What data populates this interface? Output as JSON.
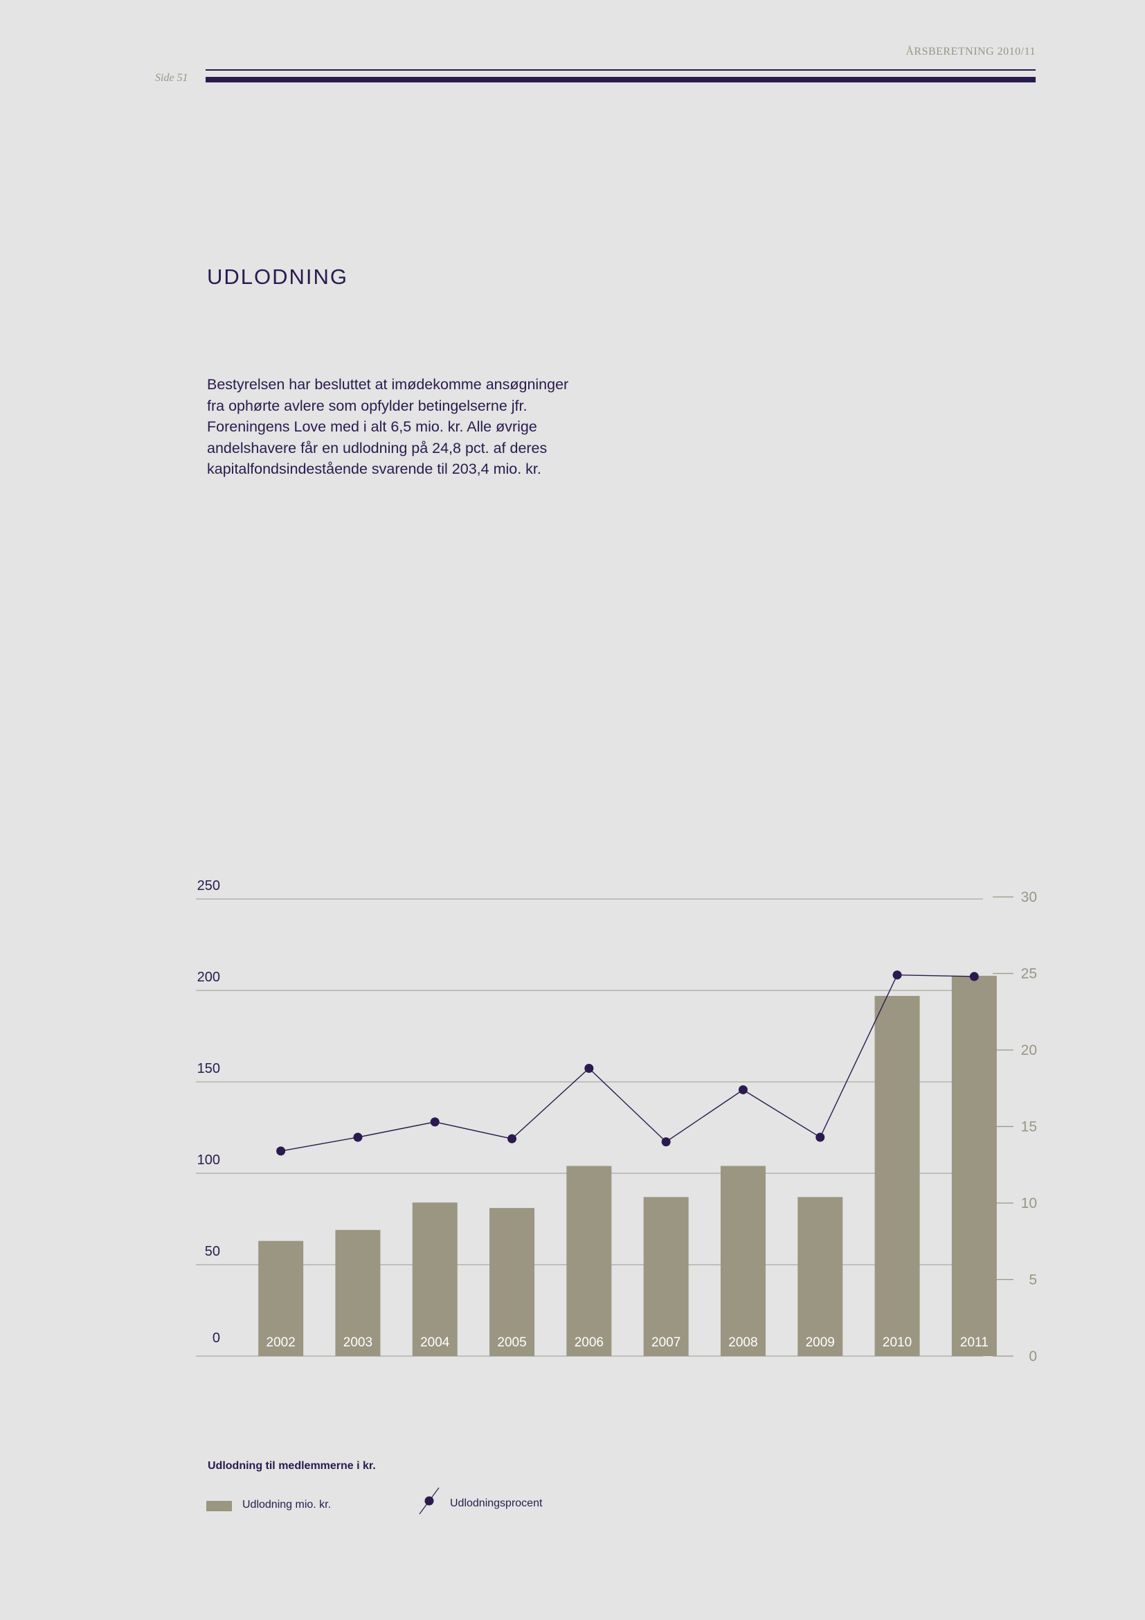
{
  "header": {
    "report_title": "ÅRSBERETNING 2010/11",
    "page_label": "Side 51"
  },
  "section": {
    "title": "UDLODNING",
    "paragraph_lines": [
      "Bestyrelsen har besluttet at imødekomme ansøgninger",
      "fra ophørte avlere som opfylder betingelserne jfr.",
      "Foreningens Love med i alt 6,5 mio. kr. Alle øvrige",
      "andelshavere får en udlodning på 24,8 pct. af deres",
      "kapitalfondsindestående svarende til 203,4 mio. kr."
    ]
  },
  "chart_data": {
    "type": "bar",
    "title": "Udlodning til medlemmerne i kr.",
    "categories": [
      "2002",
      "2003",
      "2004",
      "2005",
      "2006",
      "2007",
      "2008",
      "2009",
      "2010",
      "2011"
    ],
    "series": [
      {
        "name": "Udlodning mio. kr.",
        "type": "bar",
        "axis": "left",
        "color": "#9a9682",
        "values": [
          63,
          69,
          84,
          81,
          104,
          87,
          104,
          87,
          197,
          208
        ]
      },
      {
        "name": "Udlodningsprocent",
        "type": "line",
        "axis": "right",
        "color": "#2a1a4e",
        "values": [
          13.4,
          14.3,
          15.3,
          14.2,
          18.8,
          14.0,
          17.4,
          14.3,
          24.9,
          24.8
        ]
      }
    ],
    "left_axis": {
      "min": 0,
      "max": 250,
      "ticks": [
        0,
        50,
        100,
        150,
        200,
        250
      ]
    },
    "right_axis": {
      "min": 0,
      "max": 30,
      "ticks": [
        0,
        5,
        10,
        15,
        20,
        25,
        30
      ]
    },
    "grid": true,
    "legend_position": "bottom-left",
    "colors": {
      "bar": "#9a9682",
      "line": "#2a1a4e",
      "grid": "#b3b3ad",
      "right_axis_text": "#9a9685",
      "left_axis_text": "#2a1a4e"
    }
  }
}
